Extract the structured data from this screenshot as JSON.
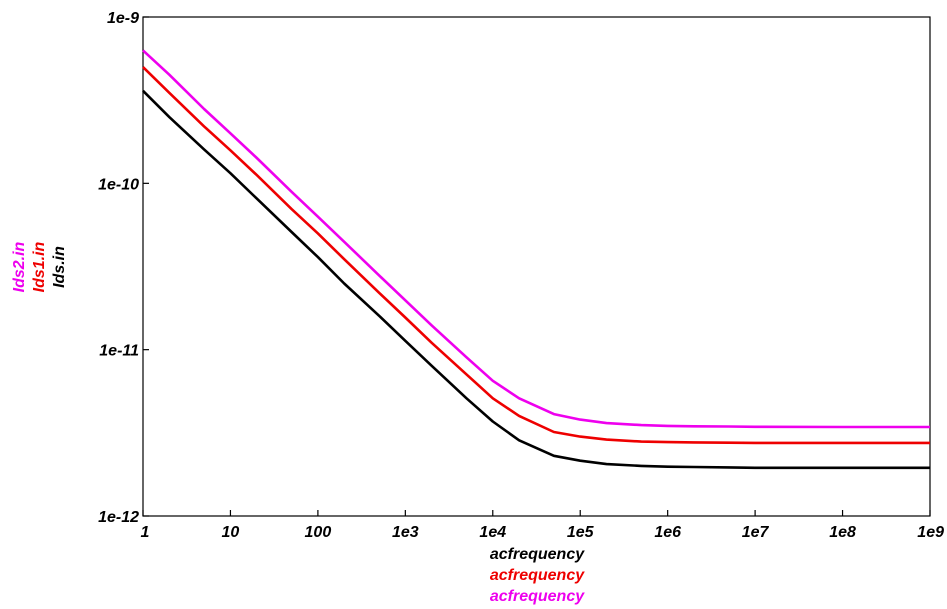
{
  "chart_data": {
    "type": "line",
    "x_scale": "log",
    "y_scale": "log",
    "xlim": [
      1,
      1000000000
    ],
    "ylim": [
      1e-12,
      1e-09
    ],
    "x_ticks": [
      {
        "value": 1,
        "label": "1"
      },
      {
        "value": 10,
        "label": "10"
      },
      {
        "value": 100,
        "label": "100"
      },
      {
        "value": 1000,
        "label": "1e3"
      },
      {
        "value": 10000,
        "label": "1e4"
      },
      {
        "value": 100000,
        "label": "1e5"
      },
      {
        "value": 1000000,
        "label": "1e6"
      },
      {
        "value": 10000000,
        "label": "1e7"
      },
      {
        "value": 100000000,
        "label": "1e8"
      },
      {
        "value": 1000000000,
        "label": "1e9"
      }
    ],
    "y_ticks": [
      {
        "value": 1e-09,
        "label": "1e-9"
      },
      {
        "value": 1e-10,
        "label": "1e-10"
      },
      {
        "value": 1e-11,
        "label": "1e-11"
      },
      {
        "value": 1e-12,
        "label": "1e-12"
      }
    ],
    "grid": false,
    "x": [
      1,
      2,
      5,
      10,
      20,
      50,
      100,
      200,
      500,
      1000,
      2000,
      5000,
      10000,
      20000,
      50000,
      100000,
      200000,
      500000,
      1000000,
      2000000,
      5000000,
      10000000,
      100000000,
      1000000000
    ],
    "series": [
      {
        "name": "Ids.in",
        "color": "#000000",
        "xlabel": "acfrequency",
        "values": [
          3.6e-10,
          2.5e-10,
          1.6e-10,
          1.15e-10,
          8.1e-11,
          5.1e-11,
          3.6e-11,
          2.5e-11,
          1.6e-11,
          1.13e-11,
          8e-12,
          5.1e-12,
          3.7e-12,
          2.85e-12,
          2.3e-12,
          2.15e-12,
          2.05e-12,
          2e-12,
          1.98e-12,
          1.97e-12,
          1.96e-12,
          1.95e-12,
          1.95e-12,
          1.95e-12
        ]
      },
      {
        "name": "Ids1.in",
        "color": "#ee0000",
        "xlabel": "acfrequency",
        "values": [
          5e-10,
          3.5e-10,
          2.2e-10,
          1.58e-10,
          1.12e-10,
          7e-11,
          5e-11,
          3.5e-11,
          2.2e-11,
          1.56e-11,
          1.1e-11,
          7.1e-12,
          5.1e-12,
          4e-12,
          3.2e-12,
          3e-12,
          2.88e-12,
          2.8e-12,
          2.78e-12,
          2.77e-12,
          2.76e-12,
          2.75e-12,
          2.75e-12,
          2.75e-12
        ]
      },
      {
        "name": "Ids2.in",
        "color": "#ee00ee",
        "xlabel": "acfrequency",
        "values": [
          6.3e-10,
          4.5e-10,
          2.8e-10,
          2e-10,
          1.42e-10,
          8.9e-11,
          6.3e-11,
          4.45e-11,
          2.8e-11,
          1.98e-11,
          1.4e-11,
          9e-12,
          6.5e-12,
          5.1e-12,
          4.1e-12,
          3.8e-12,
          3.62e-12,
          3.52e-12,
          3.48e-12,
          3.46e-12,
          3.45e-12,
          3.44e-12,
          3.43e-12,
          3.43e-12
        ]
      }
    ]
  }
}
